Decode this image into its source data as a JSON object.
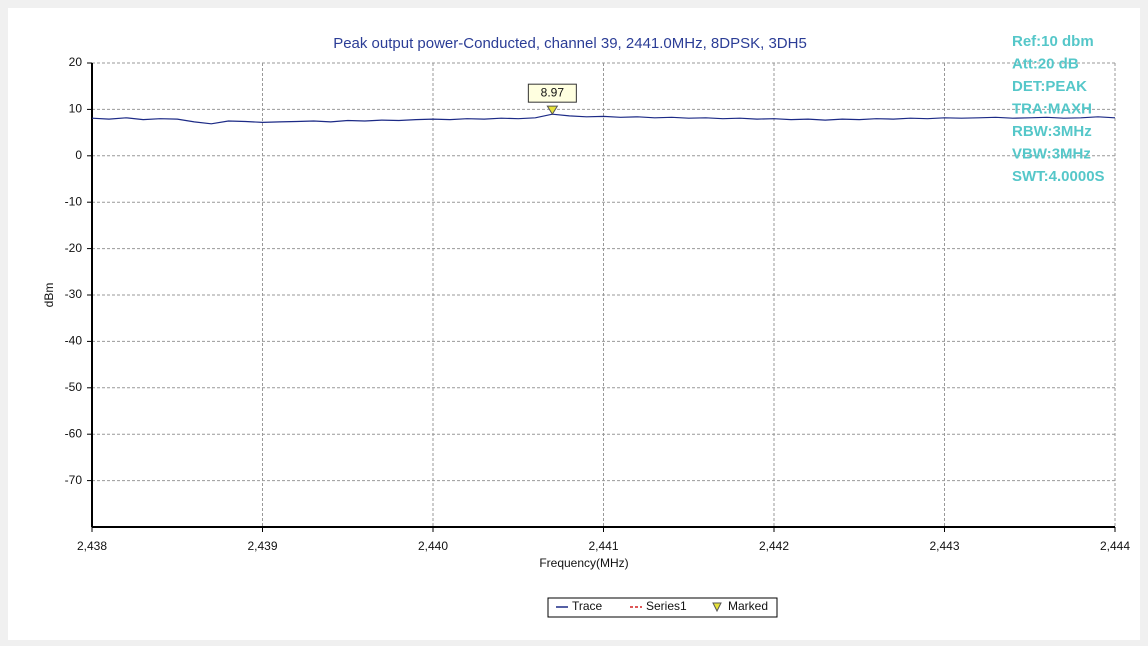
{
  "chart_data": {
    "type": "line",
    "title": "Peak output power-Conducted, channel 39, 2441.0MHz, 8DPSK, 3DH5",
    "x_label": "Frequency(MHz)",
    "y_label": "dBm",
    "xlim": [
      2438,
      2444
    ],
    "xticks": [
      {
        "value": 2438,
        "label": "2,438"
      },
      {
        "value": 2439,
        "label": "2,439"
      },
      {
        "value": 2440,
        "label": "2,440"
      },
      {
        "value": 2441,
        "label": "2,441"
      },
      {
        "value": 2442,
        "label": "2,442"
      },
      {
        "value": 2443,
        "label": "2,443"
      },
      {
        "value": 2444,
        "label": "2,444"
      }
    ],
    "ylim": [
      -80,
      20
    ],
    "yticks": [
      -70,
      -60,
      -50,
      -40,
      -30,
      -20,
      -10,
      0,
      10,
      20
    ],
    "grid": true,
    "legend": "bottom",
    "annotations": [
      "Ref:10 dbm",
      "Att:20 dB",
      "DET:PEAK",
      "TRA:MAXH",
      "RBW:3MHz",
      "VBW:3MHz",
      "SWT:4.0000S"
    ],
    "series": [
      {
        "name": "Trace",
        "color": "#1c2a86",
        "x": [
          2438,
          2438.1,
          2438.2,
          2438.3,
          2438.4,
          2438.5,
          2438.6,
          2438.7,
          2438.8,
          2438.9,
          2439,
          2439.1,
          2439.2,
          2439.3,
          2439.4,
          2439.5,
          2439.6,
          2439.7,
          2439.8,
          2439.9,
          2440,
          2440.1,
          2440.2,
          2440.3,
          2440.4,
          2440.5,
          2440.6,
          2440.7,
          2440.8,
          2440.9,
          2441,
          2441.1,
          2441.2,
          2441.3,
          2441.4,
          2441.5,
          2441.6,
          2441.7,
          2441.8,
          2441.9,
          2442,
          2442.1,
          2442.2,
          2442.3,
          2442.4,
          2442.5,
          2442.6,
          2442.7,
          2442.8,
          2442.9,
          2443,
          2443.1,
          2443.2,
          2443.3,
          2443.4,
          2443.5,
          2443.6,
          2443.7,
          2443.8,
          2443.9,
          2444
        ],
        "values": [
          8.1,
          7.9,
          8.2,
          7.8,
          8.0,
          7.9,
          7.3,
          6.9,
          7.5,
          7.4,
          7.2,
          7.3,
          7.4,
          7.5,
          7.3,
          7.6,
          7.5,
          7.7,
          7.6,
          7.8,
          7.9,
          7.8,
          8.0,
          7.9,
          8.1,
          8.0,
          8.2,
          8.97,
          8.6,
          8.4,
          8.5,
          8.3,
          8.4,
          8.2,
          8.3,
          8.1,
          8.2,
          8.0,
          8.1,
          7.9,
          8.0,
          7.8,
          7.9,
          7.7,
          7.9,
          7.8,
          8.0,
          7.9,
          8.1,
          8.0,
          8.2,
          8.1,
          8.2,
          8.3,
          8.1,
          8.2,
          8.3,
          8.1,
          8.2,
          8.4,
          8.2
        ]
      },
      {
        "name": "Series1",
        "color": "#d42020",
        "x": [],
        "values": []
      },
      {
        "name": "Marked",
        "color": "#e6e23a",
        "x": [
          2440.7
        ],
        "values": [
          8.97
        ]
      }
    ]
  }
}
